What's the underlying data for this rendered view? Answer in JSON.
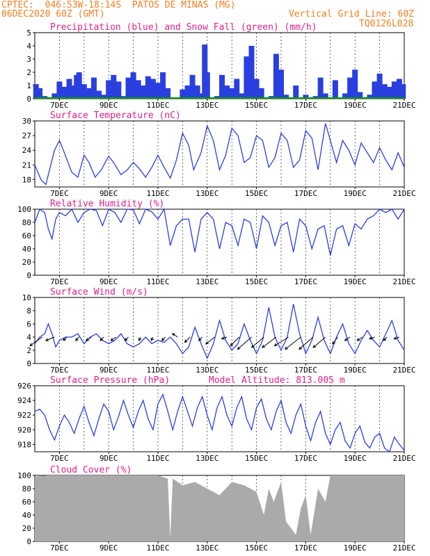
{
  "header": {
    "line1": "CPTEC:  046:53W-18:14S  PATOS DE MINAS (MG)",
    "line2": "06DEC2020 60Z (GMT)",
    "grid_note": "Vertical Grid Line: 60Z",
    "code": "TQ0126L028"
  },
  "colors": {
    "series": "#2a3fe0",
    "snow": "#00a000",
    "title": "#e0208c",
    "header": "#f08020",
    "cloud": "#aaaaaa",
    "wind_arrow": "#000000"
  },
  "date_labels": [
    "7DEC",
    "9DEC",
    "11DEC",
    "13DEC",
    "15DEC",
    "17DEC",
    "19DEC",
    "21DEC"
  ],
  "chart_data": [
    {
      "id": "precip",
      "type": "bar",
      "title": "Precipitation (blue) and Snow Fall (green) (mm/h)",
      "ylim": [
        0,
        5
      ],
      "yticks": [
        "0",
        "1",
        "2",
        "3",
        "4",
        "5"
      ],
      "xlim_days": [
        6,
        21
      ],
      "precip": {
        "x": [
          6.05,
          6.2,
          6.4,
          6.6,
          6.8,
          7.0,
          7.2,
          7.4,
          7.6,
          7.7,
          7.8,
          8.0,
          8.2,
          8.4,
          8.6,
          8.8,
          9.0,
          9.2,
          9.4,
          9.6,
          9.8,
          10.0,
          10.2,
          10.4,
          10.6,
          10.8,
          11.0,
          11.2,
          11.4,
          11.6,
          11.8,
          12.0,
          12.2,
          12.4,
          12.6,
          12.8,
          12.9,
          13.0,
          13.2,
          13.4,
          13.6,
          13.8,
          14.0,
          14.2,
          14.4,
          14.6,
          14.8,
          15.0,
          15.2,
          15.4,
          15.6,
          15.8,
          16.0,
          16.2,
          16.4,
          16.6,
          16.8,
          17.0,
          17.2,
          17.4,
          17.6,
          17.8,
          18.0,
          18.2,
          18.4,
          18.6,
          18.8,
          19.0,
          19.2,
          19.4,
          19.6,
          19.8,
          20.0,
          20.2,
          20.4,
          20.6,
          20.8,
          20.95
        ],
        "y": [
          1.1,
          0.8,
          0.2,
          0.0,
          0.4,
          1.3,
          0.9,
          1.5,
          1.0,
          1.8,
          2.0,
          1.1,
          0.8,
          1.6,
          0.6,
          0.3,
          1.4,
          1.8,
          1.3,
          0.2,
          1.6,
          2.0,
          1.4,
          1.0,
          1.7,
          1.5,
          1.2,
          2.0,
          0.8,
          0.0,
          0.0,
          0.7,
          1.0,
          1.8,
          1.0,
          0.4,
          4.1,
          2.0,
          0.0,
          0.2,
          1.8,
          1.0,
          0.8,
          1.5,
          0.4,
          3.2,
          4.0,
          1.5,
          0.8,
          0.0,
          0.2,
          3.4,
          2.2,
          0.3,
          0.0,
          1.0,
          0.0,
          0.3,
          0.0,
          0.2,
          1.6,
          0.4,
          0.0,
          1.4,
          0.1,
          0.4,
          1.6,
          2.2,
          0.5,
          0.0,
          0.3,
          1.3,
          1.9,
          1.1,
          0.9,
          1.3,
          1.5,
          1.1
        ]
      },
      "snow": {
        "x": [
          6,
          21
        ],
        "y": [
          0,
          0
        ]
      }
    },
    {
      "id": "temp",
      "type": "line",
      "title": "Surface Temperature (nC)",
      "ylim": [
        16.5,
        30
      ],
      "yticks": [
        "18",
        "21",
        "24",
        "27",
        "30"
      ],
      "x": [
        6.0,
        6.25,
        6.45,
        6.6,
        6.8,
        7.0,
        7.2,
        7.5,
        7.75,
        8.0,
        8.2,
        8.45,
        8.7,
        9.0,
        9.2,
        9.5,
        9.75,
        10.0,
        10.2,
        10.5,
        10.75,
        11.0,
        11.2,
        11.5,
        11.75,
        12.0,
        12.25,
        12.45,
        12.75,
        13.0,
        13.25,
        13.5,
        13.75,
        14.0,
        14.25,
        14.5,
        14.75,
        15.0,
        15.25,
        15.5,
        15.75,
        16.0,
        16.25,
        16.5,
        16.75,
        17.0,
        17.25,
        17.5,
        17.8,
        18.0,
        18.25,
        18.5,
        18.75,
        19.0,
        19.25,
        19.5,
        19.75,
        20.0,
        20.25,
        20.5,
        20.75,
        21.0
      ],
      "y": [
        21.0,
        18.0,
        17.0,
        20.0,
        24.0,
        26.0,
        23.5,
        19.5,
        18.5,
        23.0,
        21.5,
        18.5,
        20.0,
        22.8,
        21.5,
        19.0,
        20.0,
        21.5,
        20.5,
        18.5,
        20.5,
        23.0,
        21.0,
        18.3,
        22.0,
        27.5,
        25.0,
        20.0,
        23.5,
        29.0,
        26.0,
        20.0,
        23.0,
        28.5,
        27.0,
        21.5,
        22.5,
        27.0,
        26.0,
        20.5,
        22.5,
        27.5,
        26.0,
        20.5,
        22.0,
        28.0,
        26.5,
        20.0,
        29.5,
        26.0,
        21.5,
        26.0,
        24.0,
        21.0,
        25.5,
        23.5,
        21.5,
        24.5,
        22.0,
        20.0,
        23.5,
        20.5
      ]
    },
    {
      "id": "rh",
      "type": "line",
      "title": "Relative Humidity (%)",
      "ylim": [
        0,
        100
      ],
      "yticks": [
        "0",
        "20",
        "40",
        "60",
        "80",
        "100"
      ],
      "x": [
        6.0,
        6.2,
        6.4,
        6.55,
        6.7,
        6.85,
        7.0,
        7.25,
        7.5,
        7.75,
        8.0,
        8.25,
        8.5,
        8.75,
        9.0,
        9.25,
        9.5,
        9.75,
        10.0,
        10.25,
        10.5,
        10.75,
        11.0,
        11.25,
        11.5,
        11.75,
        12.0,
        12.25,
        12.5,
        12.75,
        13.0,
        13.25,
        13.5,
        13.75,
        14.0,
        14.25,
        14.5,
        14.75,
        15.0,
        15.25,
        15.5,
        15.75,
        16.0,
        16.25,
        16.5,
        16.75,
        17.0,
        17.25,
        17.5,
        17.75,
        18.0,
        18.25,
        18.5,
        18.75,
        19.0,
        19.25,
        19.5,
        19.75,
        20.0,
        20.25,
        20.5,
        20.75,
        21.0
      ],
      "y": [
        80,
        100,
        95,
        70,
        55,
        85,
        95,
        90,
        100,
        80,
        95,
        100,
        98,
        75,
        100,
        95,
        80,
        100,
        99,
        78,
        100,
        96,
        85,
        100,
        45,
        75,
        85,
        85,
        35,
        85,
        95,
        85,
        40,
        80,
        75,
        45,
        85,
        80,
        40,
        90,
        80,
        45,
        75,
        80,
        35,
        85,
        75,
        40,
        70,
        75,
        30,
        70,
        75,
        45,
        78,
        70,
        85,
        90,
        100,
        95,
        100,
        85,
        100
      ]
    },
    {
      "id": "wind",
      "type": "line",
      "title": "Surface Wind (m/s)",
      "ylim": [
        0,
        10
      ],
      "yticks": [
        "0",
        "2",
        "4",
        "6",
        "8",
        "10"
      ],
      "x": [
        6.0,
        6.2,
        6.4,
        6.55,
        6.7,
        6.85,
        7.0,
        7.25,
        7.5,
        7.75,
        8.0,
        8.25,
        8.5,
        8.75,
        9.0,
        9.25,
        9.5,
        9.75,
        10.0,
        10.25,
        10.5,
        10.75,
        11.0,
        11.25,
        11.5,
        11.75,
        12.0,
        12.25,
        12.5,
        12.75,
        13.0,
        13.25,
        13.5,
        13.75,
        14.0,
        14.25,
        14.5,
        14.75,
        15.0,
        15.25,
        15.5,
        15.75,
        16.0,
        16.25,
        16.5,
        16.75,
        17.0,
        17.25,
        17.5,
        17.75,
        18.0,
        18.25,
        18.5,
        18.75,
        19.0,
        19.25,
        19.5,
        19.75,
        20.0,
        20.25,
        20.5,
        20.75,
        21.0
      ],
      "y": [
        3.0,
        4.0,
        4.5,
        6.0,
        4.5,
        2.5,
        3.5,
        4.0,
        4.0,
        4.5,
        3.0,
        4.0,
        4.5,
        3.5,
        3.0,
        3.5,
        4.5,
        3.0,
        2.5,
        3.0,
        4.0,
        3.0,
        3.5,
        3.2,
        4.0,
        3.0,
        1.5,
        2.5,
        5.5,
        3.0,
        0.8,
        3.0,
        6.5,
        3.5,
        2.0,
        3.0,
        6.0,
        3.5,
        1.5,
        3.5,
        8.5,
        4.0,
        2.0,
        4.0,
        9.0,
        4.5,
        1.5,
        3.5,
        7.0,
        3.5,
        1.5,
        4.0,
        6.0,
        3.0,
        1.5,
        3.5,
        5.0,
        3.5,
        2.5,
        4.5,
        6.5,
        3.5,
        2.0
      ]
    },
    {
      "id": "pres",
      "type": "line",
      "title": "Surface Pressure (hPa)",
      "annotation": "Model Altitude: 813.005 m",
      "ylim": [
        917,
        926
      ],
      "yticks": [
        "918",
        "920",
        "922",
        "924",
        "926"
      ],
      "x": [
        6.0,
        6.2,
        6.4,
        6.6,
        6.8,
        7.0,
        7.2,
        7.4,
        7.6,
        7.8,
        8.0,
        8.2,
        8.4,
        8.6,
        8.8,
        9.0,
        9.2,
        9.4,
        9.6,
        9.8,
        10.0,
        10.2,
        10.4,
        10.6,
        10.8,
        11.0,
        11.2,
        11.4,
        11.6,
        11.8,
        12.0,
        12.2,
        12.4,
        12.6,
        12.8,
        13.0,
        13.2,
        13.4,
        13.6,
        13.8,
        14.0,
        14.2,
        14.4,
        14.6,
        14.8,
        15.0,
        15.2,
        15.4,
        15.6,
        15.8,
        16.0,
        16.2,
        16.4,
        16.6,
        16.8,
        17.0,
        17.2,
        17.4,
        17.6,
        17.8,
        18.0,
        18.2,
        18.4,
        18.6,
        18.8,
        19.0,
        19.2,
        19.4,
        19.6,
        19.8,
        20.0,
        20.2,
        20.4,
        20.6,
        20.8,
        21.0
      ],
      "y": [
        922.5,
        922.8,
        922.0,
        920.0,
        918.6,
        920.5,
        922.0,
        921.0,
        919.5,
        921.5,
        923.2,
        921.0,
        919.2,
        921.5,
        923.5,
        922.5,
        920.0,
        921.8,
        924.0,
        922.0,
        920.3,
        922.5,
        924.0,
        921.5,
        920.0,
        923.5,
        924.8,
        922.5,
        920.0,
        922.5,
        924.5,
        922.5,
        920.5,
        923.0,
        924.5,
        922.0,
        920.0,
        923.0,
        924.5,
        922.0,
        920.5,
        923.0,
        924.5,
        921.5,
        920.0,
        923.0,
        924.2,
        921.5,
        920.0,
        922.5,
        924.0,
        921.0,
        919.5,
        922.0,
        923.5,
        920.5,
        918.5,
        921.0,
        922.5,
        919.5,
        918.0,
        920.0,
        921.0,
        918.5,
        917.5,
        919.5,
        920.5,
        918.3,
        917.5,
        919.0,
        919.5,
        917.5,
        917.0,
        919.0,
        918.0,
        917.2
      ]
    },
    {
      "id": "cloud",
      "type": "area",
      "title": "Cloud Cover (%)",
      "ylim": [
        0,
        100
      ],
      "yticks": [
        "0",
        "20",
        "40",
        "60",
        "80",
        "100"
      ],
      "x": [
        6.0,
        6.5,
        7.0,
        7.5,
        8.0,
        8.5,
        9.0,
        9.5,
        10.0,
        10.5,
        11.0,
        11.4,
        11.5,
        11.6,
        12.0,
        12.5,
        13.0,
        13.5,
        14.0,
        14.5,
        15.0,
        15.3,
        15.5,
        15.7,
        16.0,
        16.2,
        16.4,
        16.6,
        16.8,
        17.0,
        17.2,
        17.5,
        17.8,
        18.0,
        18.5,
        19.0,
        19.5,
        20.0,
        20.5,
        21.0
      ],
      "y": [
        98,
        100,
        100,
        100,
        100,
        100,
        100,
        100,
        100,
        100,
        100,
        95,
        5,
        95,
        85,
        90,
        80,
        70,
        90,
        85,
        75,
        40,
        80,
        60,
        90,
        30,
        20,
        10,
        50,
        70,
        10,
        80,
        60,
        100,
        100,
        100,
        100,
        100,
        100,
        100
      ]
    }
  ],
  "wind_vectors": {
    "note_units": "m/s",
    "x": [
      6.3,
      6.8,
      7.3,
      7.8,
      8.3,
      8.8,
      9.3,
      9.8,
      10.3,
      10.8,
      11.3,
      11.8,
      12.3,
      12.8,
      13.3,
      13.8,
      14.3,
      14.8,
      15.3,
      15.8,
      16.3,
      16.8,
      17.3,
      17.8,
      18.3,
      18.8,
      19.3,
      19.8,
      20.3,
      20.8
    ],
    "u": [
      -3.5,
      -2.5,
      -1.0,
      -1.0,
      -1.5,
      -1.0,
      -1.5,
      -1.0,
      -0.5,
      -0.5,
      -1.0,
      -1.5,
      -1.5,
      -1.0,
      -2.5,
      -1.5,
      -2.5,
      -4.0,
      -3.5,
      -4.0,
      -4.0,
      -4.5,
      -4.0,
      -3.5,
      -1.5,
      -1.5,
      -1.5,
      -1.5,
      -1.0,
      -1.5
    ],
    "v": [
      -2.5,
      -1.0,
      -1.0,
      -1.0,
      -1.0,
      -1.0,
      -1.0,
      -1.0,
      -1.0,
      -1.0,
      -1.0,
      1.0,
      -1.5,
      -1.0,
      -2.0,
      -0.5,
      -2.5,
      -3.5,
      -3.0,
      -3.0,
      -2.5,
      -3.5,
      -3.5,
      -3.0,
      -2.0,
      -1.0,
      -1.0,
      -0.5,
      -1.0,
      -0.5
    ]
  }
}
